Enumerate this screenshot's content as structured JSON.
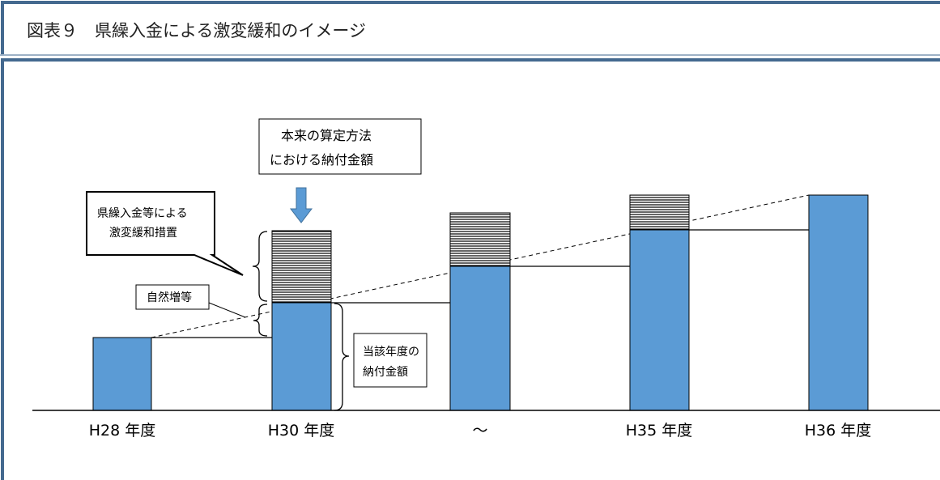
{
  "header": {
    "title": "図表９　県繰入金による激変緩和のイメージ"
  },
  "categories": [
    "H28 年度",
    "H30 年度",
    "～",
    "H35 年度",
    "H36 年度"
  ],
  "callouts": {
    "original_method": [
      "本来の算定方法",
      "における納付金額"
    ],
    "mitigation": [
      "県繰入金等による",
      "激変緩和措置"
    ],
    "natural_increase": [
      "自然増等"
    ],
    "current_payment": [
      "当該年度の",
      "納付金額"
    ]
  }
}
